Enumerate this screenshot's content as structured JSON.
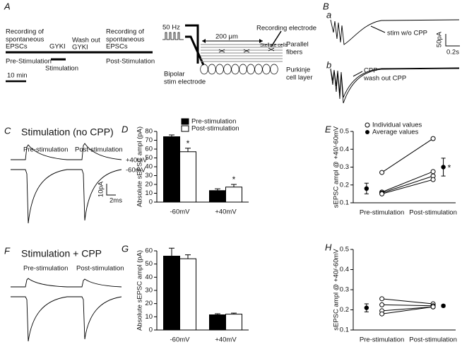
{
  "panel_a": {
    "label": "A",
    "recording_pre": [
      "Recording of",
      "spontaneous",
      "EPSCs"
    ],
    "gyki": "GYKI",
    "wash_out": [
      "Wash out",
      "GYKI"
    ],
    "recording_post": [
      "Recording of",
      "spontaneous",
      "EPSCs"
    ],
    "pre_stimulation": "Pre-Stimulation",
    "stimulation": "Stimulation",
    "post_stimulation": "Post-Stimulation",
    "scale": "10 min",
    "frequency": "50 Hz",
    "distance": "200 μm",
    "recording_electrode": "Recording electrode",
    "stellate_cells": "Stellate cells",
    "parallel_fibers": [
      "Parallel",
      "fibers"
    ],
    "stim_electrode": [
      "Bipolar",
      "stim electrode"
    ],
    "purkinje": [
      "Purkinje",
      "cell layer"
    ]
  },
  "panel_b": {
    "label": "B",
    "trace_a": "a",
    "stim_no_cpp": "stim w/o CPP",
    "scale_y": "50pA",
    "scale_x": "0.2s",
    "trace_b": "b",
    "cpp": "CPP",
    "wash_out": "wash out CPP"
  },
  "panel_c": {
    "label": "C",
    "title": "Stimulation (no CPP)",
    "pre": "Pre-stimulation",
    "post": "Post-stimulation",
    "positive": "+40mV",
    "negative": "-60mV",
    "scale_y": "10pA",
    "scale_x": "2ms"
  },
  "panel_f": {
    "label": "F",
    "title": "Stimulation + CPP",
    "pre": "Pre-stimulation",
    "post": "Post-stimulation"
  },
  "chart_data": [
    {
      "type": "bar",
      "panel": "D",
      "y_label": "Absolute sEPSC ampl (pA)",
      "categories": [
        "-60mV",
        "+40mV"
      ],
      "series": [
        {
          "name": "Pre-stimulation",
          "color": "#000000",
          "values": [
            74,
            13
          ],
          "errors": [
            2,
            2
          ]
        },
        {
          "name": "Post-stimulation",
          "color": "#ffffff",
          "values": [
            57,
            17
          ],
          "errors": [
            4,
            3
          ]
        }
      ],
      "annotations": [
        "*",
        "*"
      ],
      "ylim": [
        0,
        80
      ],
      "yticks": [
        0,
        10,
        20,
        30,
        40,
        50,
        60,
        70,
        80
      ]
    },
    {
      "type": "paired",
      "panel": "E",
      "y_label": "sEPSC ampl @ +40/-60mV",
      "categories": [
        "Pre-stimulation",
        "Post-stimulation"
      ],
      "individual": {
        "name": "Individual values",
        "pairs": [
          [
            0.27,
            0.46
          ],
          [
            0.16,
            0.275
          ],
          [
            0.155,
            0.25
          ],
          [
            0.15,
            0.23
          ]
        ]
      },
      "average": {
        "name": "Average values",
        "values": [
          0.18,
          0.3
        ],
        "errors": [
          0.03,
          0.05
        ]
      },
      "annotation": "*",
      "ylim": [
        0.1,
        0.5
      ],
      "yticks": [
        0.1,
        0.2,
        0.3,
        0.4,
        0.5
      ]
    },
    {
      "type": "bar",
      "panel": "G",
      "y_label": "Absolute sEPSC ampl (pA)",
      "categories": [
        "-60mV",
        "+40mV"
      ],
      "series": [
        {
          "color": "#000000",
          "values": [
            56,
            11.5
          ],
          "errors": [
            6,
            0.8
          ]
        },
        {
          "color": "#ffffff",
          "values": [
            54,
            12
          ],
          "errors": [
            3,
            0.8
          ]
        }
      ],
      "ylim": [
        0,
        60
      ],
      "yticks": [
        0,
        10,
        20,
        30,
        40,
        50,
        60
      ]
    },
    {
      "type": "paired",
      "panel": "H",
      "y_label": "sEPSC ampl @ +40/-60mV",
      "categories": [
        "Pre-stimulation",
        "Post-stimulation"
      ],
      "individual": {
        "pairs": [
          [
            0.255,
            0.23
          ],
          [
            0.225,
            0.22
          ],
          [
            0.195,
            0.215
          ],
          [
            0.18,
            0.215
          ]
        ]
      },
      "average": {
        "values": [
          0.21,
          0.22
        ],
        "errors": [
          0.02,
          0.005
        ]
      },
      "ylim": [
        0.1,
        0.5
      ],
      "yticks": [
        0.1,
        0.2,
        0.3,
        0.4,
        0.5
      ]
    }
  ]
}
